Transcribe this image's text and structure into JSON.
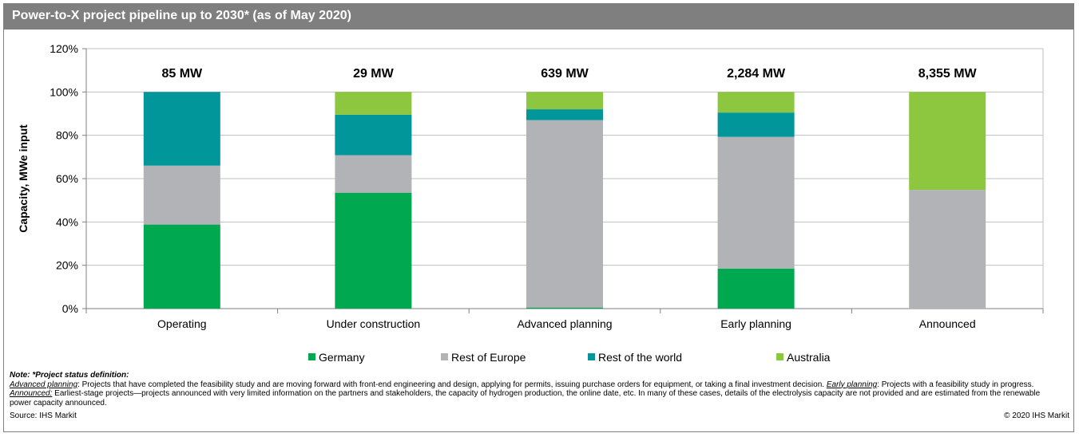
{
  "title": "Power-to-X project pipeline up to 2030* (as of May 2020)",
  "chart_data": {
    "type": "bar",
    "stacked": true,
    "categories": [
      "Operating",
      "Under construction",
      "Advanced planning",
      "Early planning",
      "Announced"
    ],
    "totals": [
      "85 MW",
      "29 MW",
      "639 MW",
      "2,284 MW",
      "8,355 MW"
    ],
    "ylabel": "Capacity, MWe input",
    "ylim": [
      0,
      120
    ],
    "yticks": [
      "0%",
      "20%",
      "40%",
      "60%",
      "80%",
      "100%",
      "120%"
    ],
    "grid": true,
    "legend_position": "bottom",
    "series": [
      {
        "name": "Germany",
        "color": "#00a94f",
        "values": [
          38.8,
          53.5,
          0.5,
          18.5,
          0
        ]
      },
      {
        "name": "Rest of Europe",
        "color": "#b1b3b6",
        "values": [
          27.2,
          17.3,
          86.5,
          60.8,
          54.8
        ]
      },
      {
        "name": "Rest of the world",
        "color": "#00969a",
        "values": [
          34.0,
          18.7,
          5.0,
          11.2,
          0
        ]
      },
      {
        "name": "Australia",
        "color": "#8dc63f",
        "values": [
          0,
          10.5,
          8.0,
          9.5,
          45.2
        ]
      }
    ]
  },
  "notes": {
    "heading": "Note: *Project status definition:",
    "adv_term": "Advanced planning",
    "adv_text": ": Projects that have completed the feasibility study and are moving forward with front-end engineering and design, applying for permits, issuing purchase orders for equipment, or taking a final investment decision. ",
    "early_term": "Early planning",
    "early_text": ": Projects with a feasibility study in progress. ",
    "ann_term": "Announced:",
    "ann_text": " Earliest-stage projects—projects announced with very limited information on the partners and stakeholders, the capacity of hydrogen production, the online date, etc. In many of these cases, details of the electrolysis capacity are not provided and are estimated from the renewable power capacity announced."
  },
  "source": "Source: IHS Markit",
  "copyright": "© 2020 IHS Markit"
}
